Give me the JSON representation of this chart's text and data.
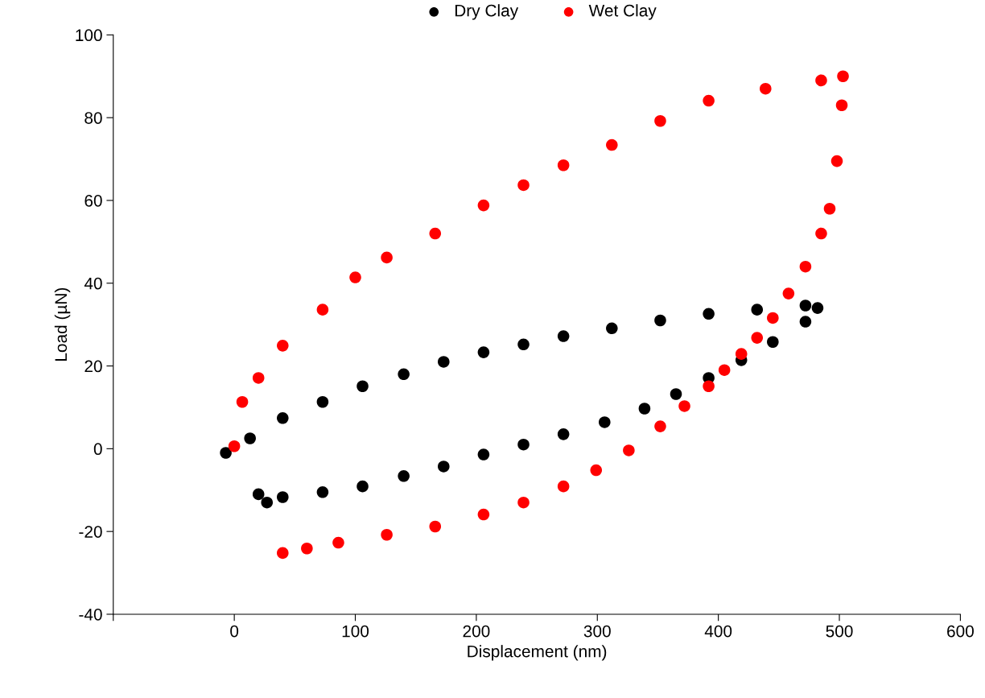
{
  "chart_data": {
    "type": "scatter",
    "xlabel": "Displacement (nm)",
    "ylabel": "Load (µN)",
    "xlim": [
      -100,
      600
    ],
    "xticks": [
      {
        "value": -100,
        "label": null
      },
      0,
      100,
      200,
      300,
      400,
      500,
      600
    ],
    "ylim": [
      -40,
      100
    ],
    "yticks": [
      -40,
      -20,
      0,
      20,
      40,
      60,
      80,
      100
    ],
    "grid": false,
    "legend": "top",
    "marker": "circle",
    "series": [
      {
        "name": "Dry Clay",
        "color": "#000000",
        "x": [
          -7,
          13,
          40,
          73,
          106,
          140,
          173,
          206,
          239,
          272,
          312,
          352,
          392,
          432,
          472,
          482,
          472,
          445,
          419,
          392,
          365,
          339,
          306,
          272,
          239,
          206,
          173,
          140,
          106,
          73,
          40,
          27,
          20
        ],
        "values": [
          -1,
          2.5,
          7.4,
          11.3,
          15.1,
          18,
          21,
          23.3,
          25.2,
          27.2,
          29.1,
          31,
          32.6,
          33.6,
          34.6,
          34,
          30.7,
          25.8,
          21.4,
          17.1,
          13.2,
          9.7,
          6.4,
          3.5,
          1,
          -1.4,
          -4.3,
          -6.6,
          -9.1,
          -10.5,
          -11.7,
          -13,
          -11
        ]
      },
      {
        "name": "Wet Clay",
        "color": "#ff0000",
        "x": [
          0,
          6.6,
          20,
          40,
          73,
          100,
          126,
          166,
          206,
          239,
          272,
          312,
          352,
          392,
          439,
          485,
          503,
          502,
          498,
          492,
          485,
          472,
          458,
          445,
          432,
          419,
          405,
          392,
          372,
          352,
          326,
          299,
          272,
          239,
          206,
          166,
          126,
          86,
          60,
          40
        ],
        "values": [
          0.6,
          11.3,
          17.1,
          24.9,
          33.6,
          41.4,
          46.2,
          52,
          58.8,
          63.7,
          68.5,
          73.4,
          79.2,
          84.1,
          87,
          89,
          90,
          83,
          69.5,
          58,
          52,
          44,
          37.5,
          31.6,
          26.8,
          22.9,
          19,
          15.1,
          10.3,
          5.4,
          -0.4,
          -5.2,
          -9.1,
          -13,
          -15.9,
          -18.8,
          -20.8,
          -22.7,
          -24.1,
          -25.2
        ]
      }
    ]
  }
}
